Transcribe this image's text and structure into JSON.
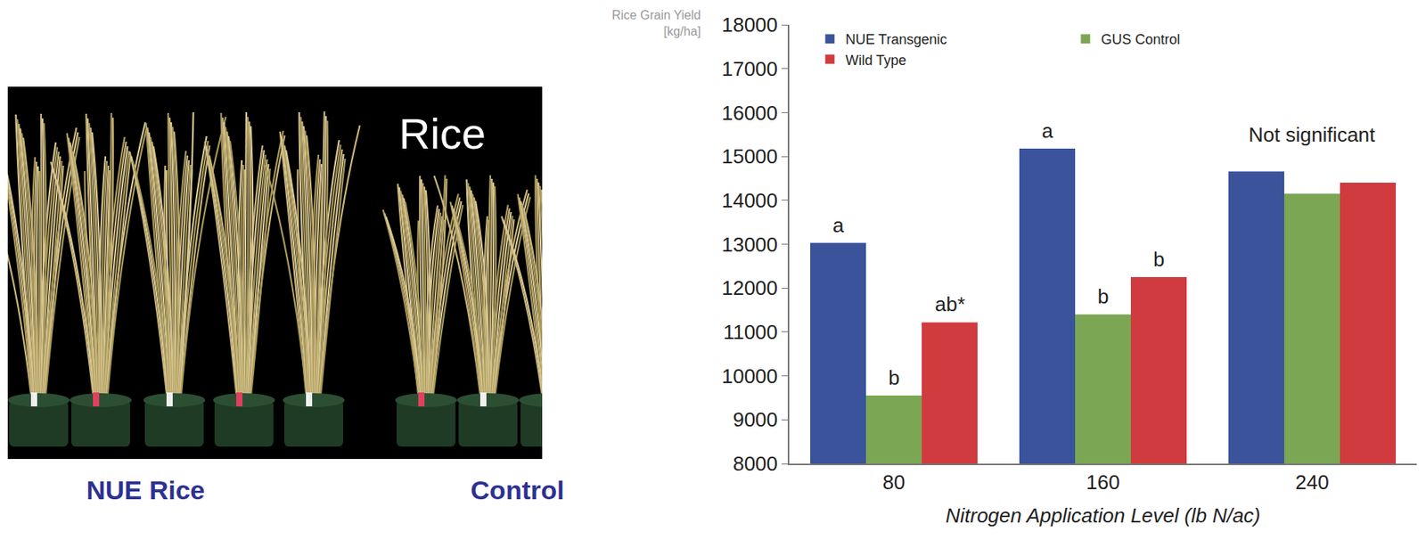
{
  "chart_data": {
    "type": "bar",
    "categories": [
      "80",
      "160",
      "240"
    ],
    "series": [
      {
        "name": "NUE Transgenic",
        "color": "#3a539b",
        "values": [
          13030,
          15180,
          14660
        ]
      },
      {
        "name": "GUS Control",
        "color": "#7ba653",
        "values": [
          9550,
          11400,
          14150
        ]
      },
      {
        "name": "Wild Type",
        "color": "#d03b3f",
        "values": [
          11220,
          12250,
          14400
        ]
      }
    ],
    "ylim": [
      8000,
      18000
    ],
    "yticks": [
      8000,
      9000,
      10000,
      11000,
      12000,
      13000,
      14000,
      15000,
      16000,
      17000,
      18000
    ],
    "x_label": "Nitrogen Application Level (lb N/ac)",
    "y_label": "Rice Grain Yield [kg/ha]",
    "legend": "top",
    "grid": false,
    "annotations": [
      {
        "category": "80",
        "series": "NUE Transgenic",
        "text": "a"
      },
      {
        "category": "80",
        "series": "GUS Control",
        "text": "b"
      },
      {
        "category": "80",
        "series": "Wild Type",
        "text": "ab*"
      },
      {
        "category": "160",
        "series": "NUE Transgenic",
        "text": "a"
      },
      {
        "category": "160",
        "series": "GUS Control",
        "text": "b"
      },
      {
        "category": "160",
        "series": "Wild Type",
        "text": "b"
      },
      {
        "category": "240",
        "text": "Not significant"
      }
    ]
  },
  "photo": {
    "title": "Rice",
    "labels": [
      "NUE Rice",
      "Control"
    ]
  }
}
